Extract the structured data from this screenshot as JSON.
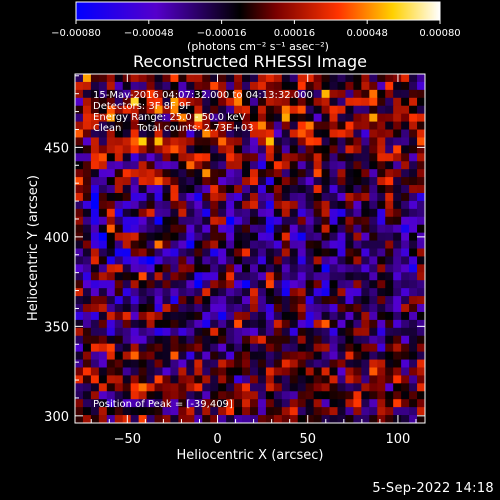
{
  "chart_data": {
    "type": "heatmap",
    "title": "Reconstructed RHESSI Image",
    "xlabel": "Heliocentric X (arcsec)",
    "ylabel": "Heliocentric Y (arcsec)",
    "xlim": [
      -79,
      115
    ],
    "ylim": [
      296,
      491
    ],
    "xticks": [
      -50,
      0,
      50,
      100
    ],
    "yticks": [
      300,
      350,
      400,
      450
    ],
    "xtick_labels": [
      "−50",
      "0",
      "50",
      "100"
    ],
    "ytick_labels": [
      "300",
      "350",
      "400",
      "450"
    ],
    "colorbar": {
      "range": [
        -0.0008,
        0.0008
      ],
      "ticks": [
        -0.0008,
        -0.00048,
        -0.00016,
        0.00016,
        0.00048,
        0.0008
      ],
      "tick_labels": [
        "−0.00080",
        "−0.00048",
        "−0.00016",
        "0.00016",
        "0.00048",
        "0.00080"
      ],
      "units_label": "(photons cm⁻² s⁻¹ asec⁻²)",
      "colors": [
        "#0000ff",
        "#5500cc",
        "#000000",
        "#7a0000",
        "#ff3300",
        "#ffd000",
        "#ffffff"
      ]
    },
    "annotations": {
      "time": "15-May-2016 04:07:32.000 to 04:13:32.000",
      "detectors": "Detectors: 3F 8F 9F",
      "energy": "Energy Range: 25.0 - 50.0 keV",
      "clean": "Clean     Total counts: 2.73E+03",
      "peak": "Position of Peak = [-39,409]"
    },
    "peak_position": [
      -39,
      409
    ]
  },
  "footer": {
    "date": "5-Sep-2022 14:18"
  }
}
